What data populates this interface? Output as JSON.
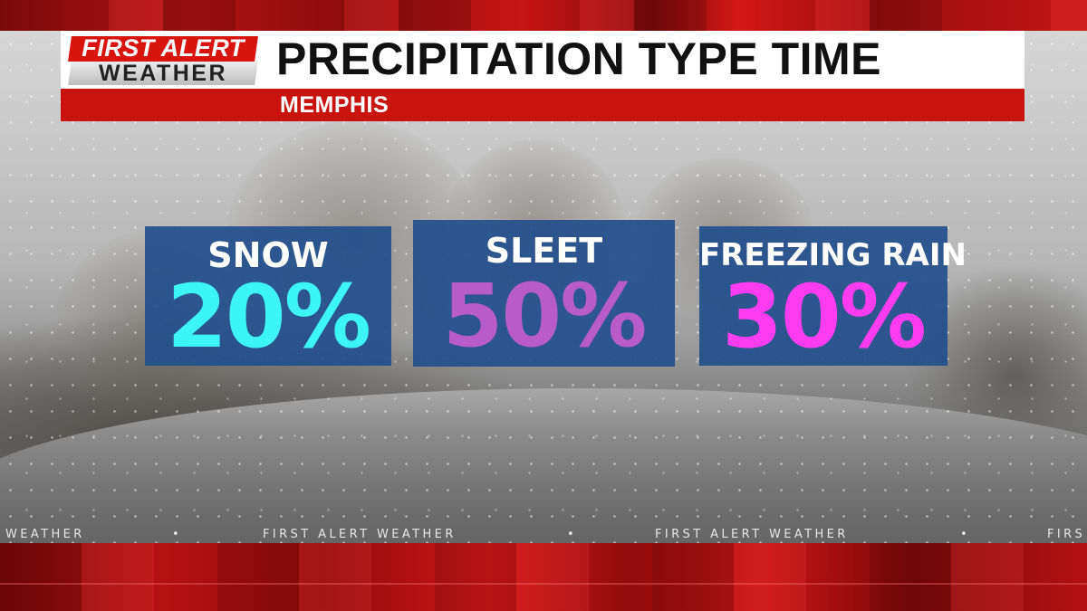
{
  "header": {
    "logo_line1": "FIRST ALERT",
    "logo_line2": "WEATHER",
    "title": "PRECIPITATION TYPE TIME",
    "location": "MEMPHIS"
  },
  "cards": [
    {
      "label": "SNOW",
      "value": "20%",
      "color": "#3ef5f5"
    },
    {
      "label": "SLEET",
      "value": "50%",
      "color": "#b85cc8"
    },
    {
      "label": "FREEZING RAIN",
      "value": "30%",
      "color": "#ff3cf0"
    }
  ],
  "ticker": {
    "items": [
      "WEATHER",
      "FIRST ALERT WEATHER",
      "FIRST ALERT WEATHER",
      "FIRS"
    ]
  },
  "colors": {
    "brand_red": "#c8130f",
    "card_blue": "#24508c"
  }
}
